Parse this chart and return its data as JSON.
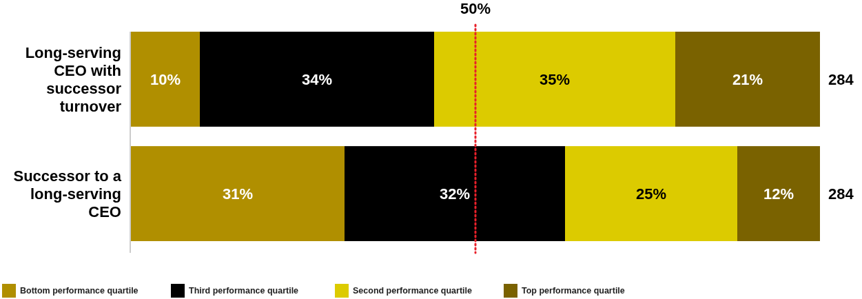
{
  "chart_data": {
    "type": "bar",
    "orientation": "horizontal",
    "stacked": true,
    "tick_labels": "y",
    "legend": "bottom",
    "categories": [
      "Long-serving CEO with successor turnover",
      "Successor to a long-serving CEO"
    ],
    "series": [
      {
        "name": "Bottom performance quartile",
        "color": "#b08f00",
        "values": [
          10,
          31
        ],
        "value_labels": [
          "10%",
          "31%"
        ]
      },
      {
        "name": "Third performance quartile",
        "color": "#000000",
        "values": [
          34,
          32
        ],
        "value_labels": [
          "34%",
          "32%"
        ]
      },
      {
        "name": "Second performance quartile",
        "color": "#dccb00",
        "values": [
          35,
          25
        ],
        "value_labels": [
          "35%",
          "25%"
        ]
      },
      {
        "name": "Top performance quartile",
        "color": "#7a6200",
        "values": [
          21,
          12
        ],
        "value_labels": [
          "21%",
          "12%"
        ]
      }
    ],
    "ref_lines": [
      {
        "axis": "x",
        "value": 50,
        "label": "50%",
        "color": "#e8202a",
        "line_style": "dotted"
      }
    ],
    "annotations": [
      {
        "text": "284",
        "x": 100,
        "y": "Long-serving CEO with successor turnover"
      },
      {
        "text": "284",
        "x": 100,
        "y": "Successor to a long-serving CEO"
      }
    ]
  }
}
